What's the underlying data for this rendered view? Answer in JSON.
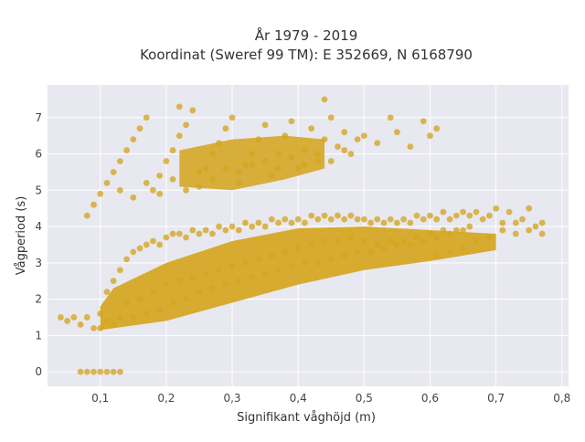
{
  "chart_data": {
    "type": "scatter",
    "title_lines": [
      "År 1979 - 2019",
      "Koordinat (Sweref 99 TM): E 352669, N 6168790"
    ],
    "xlabel": "Signifikant våghöjd (m)",
    "ylabel": "Vågperiod (s)",
    "xlim": [
      0.02,
      0.81
    ],
    "ylim": [
      -0.4,
      7.9
    ],
    "x_ticks": [
      0.1,
      0.2,
      0.3,
      0.4,
      0.5,
      0.6,
      0.7,
      0.8
    ],
    "x_tick_labels": [
      "0,1",
      "0,2",
      "0,3",
      "0,4",
      "0,5",
      "0,6",
      "0,7",
      "0,8"
    ],
    "y_ticks": [
      0,
      1,
      2,
      3,
      4,
      5,
      6,
      7
    ],
    "y_tick_labels": [
      "0",
      "1",
      "2",
      "3",
      "4",
      "5",
      "6",
      "7"
    ],
    "grid": true,
    "legend": "none",
    "colors": {
      "marker": "#d4a520",
      "plot_bg": "#e8e8f0",
      "grid": "#ffffff"
    },
    "series": [
      {
        "points": [
          [
            0.04,
            1.5
          ],
          [
            0.05,
            1.4
          ],
          [
            0.06,
            1.5
          ],
          [
            0.07,
            1.3
          ],
          [
            0.08,
            1.5
          ],
          [
            0.09,
            1.2
          ],
          [
            0.1,
            1.6
          ],
          [
            0.1,
            1.2
          ],
          [
            0.11,
            2.2
          ],
          [
            0.11,
            1.4
          ],
          [
            0.12,
            2.5
          ],
          [
            0.12,
            1.3
          ],
          [
            0.13,
            2.8
          ],
          [
            0.13,
            1.5
          ],
          [
            0.14,
            3.1
          ],
          [
            0.14,
            1.9
          ],
          [
            0.15,
            3.3
          ],
          [
            0.15,
            1.5
          ],
          [
            0.16,
            3.4
          ],
          [
            0.16,
            2.0
          ],
          [
            0.17,
            3.5
          ],
          [
            0.17,
            1.6
          ],
          [
            0.18,
            3.6
          ],
          [
            0.18,
            2.2
          ],
          [
            0.19,
            3.5
          ],
          [
            0.19,
            1.7
          ],
          [
            0.2,
            3.7
          ],
          [
            0.2,
            2.4
          ],
          [
            0.21,
            3.8
          ],
          [
            0.21,
            1.9
          ],
          [
            0.22,
            3.8
          ],
          [
            0.22,
            2.5
          ],
          [
            0.23,
            3.7
          ],
          [
            0.23,
            2.0
          ],
          [
            0.24,
            3.9
          ],
          [
            0.24,
            2.6
          ],
          [
            0.25,
            3.8
          ],
          [
            0.25,
            2.2
          ],
          [
            0.26,
            3.9
          ],
          [
            0.26,
            2.7
          ],
          [
            0.27,
            3.8
          ],
          [
            0.27,
            2.3
          ],
          [
            0.28,
            4.0
          ],
          [
            0.28,
            2.8
          ],
          [
            0.29,
            3.9
          ],
          [
            0.29,
            2.4
          ],
          [
            0.3,
            4.0
          ],
          [
            0.3,
            2.9
          ],
          [
            0.31,
            3.9
          ],
          [
            0.31,
            2.5
          ],
          [
            0.32,
            4.1
          ],
          [
            0.32,
            3.0
          ],
          [
            0.33,
            4.0
          ],
          [
            0.33,
            2.6
          ],
          [
            0.34,
            4.1
          ],
          [
            0.34,
            3.1
          ],
          [
            0.35,
            4.0
          ],
          [
            0.35,
            2.7
          ],
          [
            0.36,
            4.2
          ],
          [
            0.36,
            3.2
          ],
          [
            0.37,
            4.1
          ],
          [
            0.37,
            2.8
          ],
          [
            0.38,
            4.2
          ],
          [
            0.38,
            3.3
          ],
          [
            0.39,
            4.1
          ],
          [
            0.39,
            2.9
          ],
          [
            0.4,
            4.2
          ],
          [
            0.4,
            3.4
          ],
          [
            0.41,
            4.1
          ],
          [
            0.41,
            3.0
          ],
          [
            0.42,
            4.3
          ],
          [
            0.42,
            3.5
          ],
          [
            0.43,
            4.2
          ],
          [
            0.43,
            3.0
          ],
          [
            0.44,
            4.3
          ],
          [
            0.44,
            3.6
          ],
          [
            0.45,
            4.2
          ],
          [
            0.45,
            3.1
          ],
          [
            0.46,
            4.3
          ],
          [
            0.46,
            3.6
          ],
          [
            0.47,
            4.2
          ],
          [
            0.47,
            3.2
          ],
          [
            0.48,
            4.3
          ],
          [
            0.48,
            3.7
          ],
          [
            0.49,
            4.2
          ],
          [
            0.49,
            3.3
          ],
          [
            0.5,
            4.2
          ],
          [
            0.5,
            3.6
          ],
          [
            0.51,
            4.1
          ],
          [
            0.51,
            3.3
          ],
          [
            0.52,
            4.2
          ],
          [
            0.52,
            3.5
          ],
          [
            0.53,
            4.1
          ],
          [
            0.53,
            3.4
          ],
          [
            0.54,
            4.2
          ],
          [
            0.54,
            3.6
          ],
          [
            0.55,
            4.1
          ],
          [
            0.55,
            3.5
          ],
          [
            0.56,
            4.2
          ],
          [
            0.56,
            3.6
          ],
          [
            0.57,
            4.1
          ],
          [
            0.57,
            3.5
          ],
          [
            0.58,
            4.3
          ],
          [
            0.58,
            3.7
          ],
          [
            0.59,
            4.2
          ],
          [
            0.59,
            3.6
          ],
          [
            0.6,
            4.3
          ],
          [
            0.6,
            3.8
          ],
          [
            0.61,
            4.2
          ],
          [
            0.61,
            3.7
          ],
          [
            0.62,
            4.4
          ],
          [
            0.62,
            3.9
          ],
          [
            0.63,
            4.2
          ],
          [
            0.63,
            3.8
          ],
          [
            0.64,
            4.3
          ],
          [
            0.64,
            3.9
          ],
          [
            0.65,
            4.4
          ],
          [
            0.65,
            3.9
          ],
          [
            0.66,
            4.3
          ],
          [
            0.66,
            4.0
          ],
          [
            0.67,
            4.4
          ],
          [
            0.68,
            4.2
          ],
          [
            0.69,
            4.3
          ],
          [
            0.7,
            4.5
          ],
          [
            0.71,
            4.1
          ],
          [
            0.72,
            4.4
          ],
          [
            0.73,
            3.8
          ],
          [
            0.74,
            4.2
          ],
          [
            0.75,
            4.5
          ],
          [
            0.76,
            4.0
          ],
          [
            0.77,
            4.1
          ],
          [
            0.77,
            3.8
          ],
          [
            0.75,
            3.9
          ],
          [
            0.73,
            4.1
          ],
          [
            0.71,
            3.9
          ],
          [
            0.69,
            3.7
          ],
          [
            0.67,
            3.6
          ],
          [
            0.65,
            3.4
          ],
          [
            0.63,
            3.3
          ],
          [
            0.61,
            3.2
          ],
          [
            0.07,
            0
          ],
          [
            0.08,
            0
          ],
          [
            0.09,
            0
          ],
          [
            0.1,
            0
          ],
          [
            0.11,
            0
          ],
          [
            0.12,
            0
          ],
          [
            0.13,
            0
          ],
          [
            0.08,
            4.3
          ],
          [
            0.09,
            4.6
          ],
          [
            0.1,
            4.9
          ],
          [
            0.11,
            5.2
          ],
          [
            0.12,
            5.5
          ],
          [
            0.13,
            5.8
          ],
          [
            0.14,
            6.1
          ],
          [
            0.15,
            6.4
          ],
          [
            0.16,
            6.7
          ],
          [
            0.17,
            7.0
          ],
          [
            0.18,
            5.0
          ],
          [
            0.19,
            5.4
          ],
          [
            0.2,
            5.8
          ],
          [
            0.21,
            6.1
          ],
          [
            0.22,
            6.5
          ],
          [
            0.23,
            6.8
          ],
          [
            0.24,
            7.2
          ],
          [
            0.25,
            5.1
          ],
          [
            0.26,
            5.6
          ],
          [
            0.27,
            6.0
          ],
          [
            0.28,
            6.3
          ],
          [
            0.29,
            6.7
          ],
          [
            0.3,
            7.0
          ],
          [
            0.31,
            5.2
          ],
          [
            0.32,
            5.7
          ],
          [
            0.33,
            6.0
          ],
          [
            0.34,
            6.4
          ],
          [
            0.35,
            6.8
          ],
          [
            0.36,
            5.4
          ],
          [
            0.37,
            6.0
          ],
          [
            0.38,
            6.5
          ],
          [
            0.39,
            6.9
          ],
          [
            0.4,
            5.6
          ],
          [
            0.41,
            6.1
          ],
          [
            0.42,
            6.7
          ],
          [
            0.43,
            5.8
          ],
          [
            0.44,
            6.4
          ],
          [
            0.45,
            7.0
          ],
          [
            0.46,
            6.2
          ],
          [
            0.47,
            6.6
          ],
          [
            0.48,
            6.0
          ],
          [
            0.49,
            6.4
          ],
          [
            0.5,
            6.5
          ],
          [
            0.52,
            6.3
          ],
          [
            0.54,
            7.0
          ],
          [
            0.55,
            6.6
          ],
          [
            0.57,
            6.2
          ],
          [
            0.59,
            6.9
          ],
          [
            0.6,
            6.5
          ],
          [
            0.61,
            6.7
          ],
          [
            0.13,
            5.0
          ],
          [
            0.15,
            4.8
          ],
          [
            0.17,
            5.2
          ],
          [
            0.19,
            4.9
          ],
          [
            0.21,
            5.3
          ],
          [
            0.23,
            5.0
          ],
          [
            0.25,
            5.5
          ],
          [
            0.27,
            5.3
          ],
          [
            0.29,
            5.6
          ],
          [
            0.31,
            5.5
          ],
          [
            0.33,
            5.7
          ],
          [
            0.35,
            5.8
          ],
          [
            0.37,
            5.6
          ],
          [
            0.39,
            5.9
          ],
          [
            0.41,
            5.7
          ],
          [
            0.43,
            6.0
          ],
          [
            0.45,
            5.8
          ],
          [
            0.47,
            6.1
          ],
          [
            0.22,
            7.3
          ],
          [
            0.44,
            7.5
          ]
        ]
      }
    ]
  }
}
